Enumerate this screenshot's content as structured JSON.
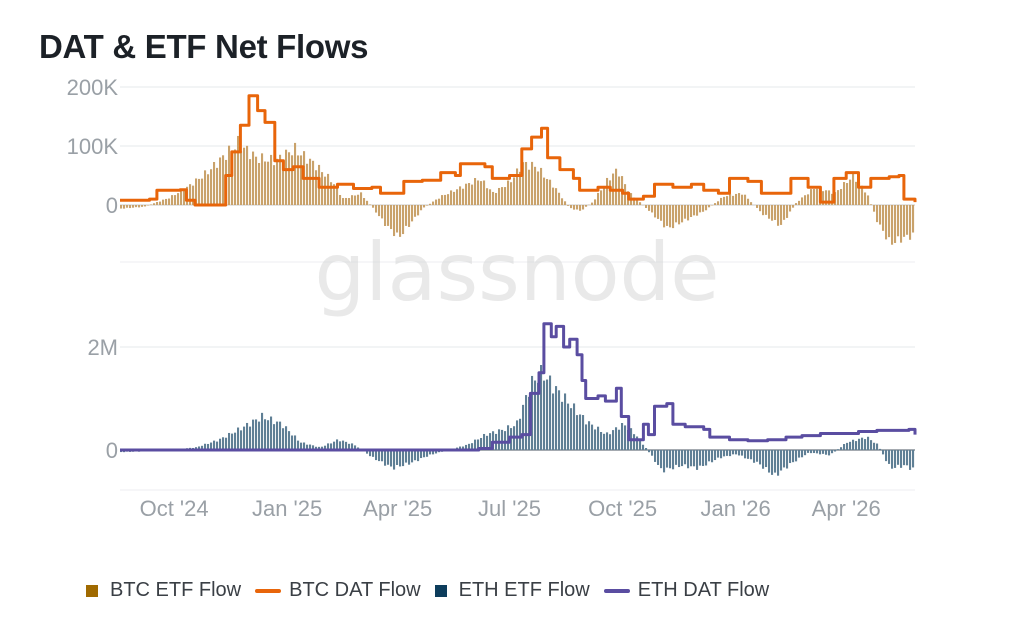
{
  "title": "DAT & ETF Net Flows",
  "watermark": "glassnode",
  "colors": {
    "btc_etf": "#a06a00",
    "btc_etf_fill": "#c9a26b",
    "btc_dat": "#e8650a",
    "eth_etf": "#0d3d5c",
    "eth_etf_fill": "#5f7f95",
    "eth_dat": "#5a4da1"
  },
  "legend": [
    {
      "label": "BTC ETF Flow",
      "kind": "box",
      "color": "#a06a00"
    },
    {
      "label": "BTC DAT Flow",
      "kind": "line",
      "color": "#e8650a"
    },
    {
      "label": "ETH ETF Flow",
      "kind": "box",
      "color": "#0d3d5c"
    },
    {
      "label": "ETH DAT Flow",
      "kind": "line",
      "color": "#5a4da1"
    }
  ],
  "chart_data": [
    {
      "type": "bar",
      "panel": "top",
      "ylim": [
        -100000,
        200000
      ],
      "y_ticks": [
        {
          "value": 200000,
          "label": "200K"
        },
        {
          "value": 100000,
          "label": "100K"
        },
        {
          "value": 0,
          "label": "0"
        }
      ],
      "x_ticks": [
        "Oct '24",
        "Jan '25",
        "Apr '25",
        "Jul '25",
        "Oct '25",
        "Jan '26",
        "Apr '26"
      ],
      "x_range": [
        "2024-09-01",
        "2026-06-10"
      ],
      "grid": true,
      "series": [
        {
          "name": "BTC ETF Flow",
          "kind": "bar",
          "points": [
            [
              "2024-09-01",
              -6000
            ],
            [
              "2024-09-20",
              -3000
            ],
            [
              "2024-10-10",
              12000
            ],
            [
              "2024-10-25",
              30000
            ],
            [
              "2024-11-10",
              55000
            ],
            [
              "2024-11-25",
              85000
            ],
            [
              "2024-12-05",
              105000
            ],
            [
              "2024-12-20",
              80000
            ],
            [
              "2025-01-05",
              75000
            ],
            [
              "2025-01-20",
              95000
            ],
            [
              "2025-02-05",
              70000
            ],
            [
              "2025-02-20",
              40000
            ],
            [
              "2025-03-01",
              10000
            ],
            [
              "2025-03-15",
              20000
            ],
            [
              "2025-03-25",
              -5000
            ],
            [
              "2025-04-05",
              -35000
            ],
            [
              "2025-04-15",
              -55000
            ],
            [
              "2025-04-25",
              -30000
            ],
            [
              "2025-05-05",
              -5000
            ],
            [
              "2025-05-20",
              15000
            ],
            [
              "2025-06-05",
              30000
            ],
            [
              "2025-06-20",
              45000
            ],
            [
              "2025-07-01",
              20000
            ],
            [
              "2025-07-15",
              40000
            ],
            [
              "2025-07-25",
              70000
            ],
            [
              "2025-08-05",
              65000
            ],
            [
              "2025-08-20",
              30000
            ],
            [
              "2025-09-01",
              -5000
            ],
            [
              "2025-09-10",
              -10000
            ],
            [
              "2025-09-20",
              5000
            ],
            [
              "2025-10-01",
              40000
            ],
            [
              "2025-10-10",
              60000
            ],
            [
              "2025-10-20",
              20000
            ],
            [
              "2025-11-05",
              -10000
            ],
            [
              "2025-11-20",
              -40000
            ],
            [
              "2025-12-05",
              -25000
            ],
            [
              "2025-12-20",
              -10000
            ],
            [
              "2026-01-05",
              15000
            ],
            [
              "2026-01-20",
              20000
            ],
            [
              "2026-02-05",
              -15000
            ],
            [
              "2026-02-20",
              -35000
            ],
            [
              "2026-03-05",
              5000
            ],
            [
              "2026-03-20",
              30000
            ],
            [
              "2026-04-05",
              20000
            ],
            [
              "2026-04-20",
              50000
            ],
            [
              "2026-05-01",
              20000
            ],
            [
              "2026-05-10",
              -30000
            ],
            [
              "2026-05-20",
              -65000
            ],
            [
              "2026-06-01",
              -55000
            ],
            [
              "2026-06-10",
              -50000
            ]
          ]
        },
        {
          "name": "BTC DAT Flow",
          "kind": "line",
          "points": [
            [
              "2024-09-01",
              8000
            ],
            [
              "2024-09-25",
              10000
            ],
            [
              "2024-10-01",
              25000
            ],
            [
              "2024-10-20",
              26000
            ],
            [
              "2024-10-25",
              8000
            ],
            [
              "2024-11-01",
              0
            ],
            [
              "2024-11-25",
              0
            ],
            [
              "2024-11-26",
              50000
            ],
            [
              "2024-12-01",
              90000
            ],
            [
              "2024-12-08",
              135000
            ],
            [
              "2024-12-15",
              185000
            ],
            [
              "2024-12-22",
              160000
            ],
            [
              "2024-12-28",
              140000
            ],
            [
              "2025-01-05",
              75000
            ],
            [
              "2025-01-12",
              60000
            ],
            [
              "2025-01-20",
              65000
            ],
            [
              "2025-01-28",
              45000
            ],
            [
              "2025-02-10",
              30000
            ],
            [
              "2025-02-25",
              35000
            ],
            [
              "2025-03-10",
              28000
            ],
            [
              "2025-03-25",
              30000
            ],
            [
              "2025-04-01",
              20000
            ],
            [
              "2025-04-15",
              20000
            ],
            [
              "2025-04-20",
              40000
            ],
            [
              "2025-05-05",
              42000
            ],
            [
              "2025-05-20",
              55000
            ],
            [
              "2025-06-01",
              50000
            ],
            [
              "2025-06-05",
              70000
            ],
            [
              "2025-06-25",
              65000
            ],
            [
              "2025-07-01",
              45000
            ],
            [
              "2025-07-15",
              50000
            ],
            [
              "2025-07-25",
              95000
            ],
            [
              "2025-08-02",
              115000
            ],
            [
              "2025-08-10",
              130000
            ],
            [
              "2025-08-15",
              80000
            ],
            [
              "2025-08-25",
              60000
            ],
            [
              "2025-09-05",
              45000
            ],
            [
              "2025-09-10",
              25000
            ],
            [
              "2025-09-25",
              30000
            ],
            [
              "2025-10-05",
              25000
            ],
            [
              "2025-10-15",
              20000
            ],
            [
              "2025-10-20",
              10000
            ],
            [
              "2025-11-01",
              15000
            ],
            [
              "2025-11-10",
              35000
            ],
            [
              "2025-11-25",
              30000
            ],
            [
              "2025-12-10",
              35000
            ],
            [
              "2025-12-20",
              25000
            ],
            [
              "2026-01-01",
              20000
            ],
            [
              "2026-01-10",
              45000
            ],
            [
              "2026-01-25",
              40000
            ],
            [
              "2026-02-05",
              20000
            ],
            [
              "2026-02-20",
              20000
            ],
            [
              "2026-03-01",
              45000
            ],
            [
              "2026-03-15",
              30000
            ],
            [
              "2026-03-25",
              5000
            ],
            [
              "2026-04-05",
              45000
            ],
            [
              "2026-04-15",
              55000
            ],
            [
              "2026-04-25",
              30000
            ],
            [
              "2026-05-05",
              45000
            ],
            [
              "2026-05-20",
              48000
            ],
            [
              "2026-05-28",
              50000
            ],
            [
              "2026-06-01",
              10000
            ],
            [
              "2026-06-10",
              5000
            ]
          ]
        }
      ]
    },
    {
      "type": "bar",
      "panel": "bottom",
      "ylim": [
        -600000,
        2500000
      ],
      "y_ticks": [
        {
          "value": 2000000,
          "label": "2M"
        },
        {
          "value": 0,
          "label": "0"
        }
      ],
      "x_ticks": [
        "Oct '24",
        "Jan '25",
        "Apr '25",
        "Jul '25",
        "Oct '25",
        "Jan '26",
        "Apr '26"
      ],
      "x_range": [
        "2024-09-01",
        "2026-06-10"
      ],
      "grid": true,
      "series": [
        {
          "name": "ETH ETF Flow",
          "kind": "bar",
          "points": [
            [
              "2024-09-01",
              -40000
            ],
            [
              "2024-10-01",
              -20000
            ],
            [
              "2024-11-01",
              50000
            ],
            [
              "2024-11-20",
              200000
            ],
            [
              "2024-12-10",
              450000
            ],
            [
              "2024-12-25",
              650000
            ],
            [
              "2025-01-10",
              500000
            ],
            [
              "2025-01-25",
              150000
            ],
            [
              "2025-02-10",
              50000
            ],
            [
              "2025-02-25",
              200000
            ],
            [
              "2025-03-10",
              100000
            ],
            [
              "2025-03-25",
              -150000
            ],
            [
              "2025-04-10",
              -350000
            ],
            [
              "2025-04-25",
              -250000
            ],
            [
              "2025-05-10",
              -100000
            ],
            [
              "2025-05-25",
              0
            ],
            [
              "2025-06-10",
              100000
            ],
            [
              "2025-06-25",
              300000
            ],
            [
              "2025-07-10",
              400000
            ],
            [
              "2025-07-20",
              500000
            ],
            [
              "2025-08-01",
              1300000
            ],
            [
              "2025-08-10",
              1500000
            ],
            [
              "2025-08-20",
              1200000
            ],
            [
              "2025-09-01",
              900000
            ],
            [
              "2025-09-15",
              550000
            ],
            [
              "2025-10-01",
              300000
            ],
            [
              "2025-10-15",
              500000
            ],
            [
              "2025-10-25",
              300000
            ],
            [
              "2025-11-05",
              -50000
            ],
            [
              "2025-11-15",
              -400000
            ],
            [
              "2025-12-01",
              -300000
            ],
            [
              "2025-12-15",
              -350000
            ],
            [
              "2026-01-01",
              -150000
            ],
            [
              "2026-01-15",
              -80000
            ],
            [
              "2026-02-01",
              -250000
            ],
            [
              "2026-02-15",
              -500000
            ],
            [
              "2026-03-01",
              -250000
            ],
            [
              "2026-03-15",
              -50000
            ],
            [
              "2026-04-01",
              -100000
            ],
            [
              "2026-04-15",
              150000
            ],
            [
              "2026-05-01",
              250000
            ],
            [
              "2026-05-10",
              100000
            ],
            [
              "2026-05-20",
              -350000
            ],
            [
              "2026-06-01",
              -300000
            ],
            [
              "2026-06-10",
              -400000
            ]
          ]
        },
        {
          "name": "ETH DAT Flow",
          "kind": "line",
          "points": [
            [
              "2024-09-01",
              0
            ],
            [
              "2025-06-01",
              0
            ],
            [
              "2025-06-20",
              30000
            ],
            [
              "2025-07-01",
              150000
            ],
            [
              "2025-07-15",
              250000
            ],
            [
              "2025-07-25",
              300000
            ],
            [
              "2025-08-01",
              1100000
            ],
            [
              "2025-08-08",
              1500000
            ],
            [
              "2025-08-12",
              2450000
            ],
            [
              "2025-08-18",
              2200000
            ],
            [
              "2025-08-22",
              2400000
            ],
            [
              "2025-08-28",
              2000000
            ],
            [
              "2025-09-02",
              2150000
            ],
            [
              "2025-09-08",
              1850000
            ],
            [
              "2025-09-12",
              1350000
            ],
            [
              "2025-09-15",
              1000000
            ],
            [
              "2025-09-25",
              1050000
            ],
            [
              "2025-10-01",
              950000
            ],
            [
              "2025-10-10",
              1200000
            ],
            [
              "2025-10-14",
              650000
            ],
            [
              "2025-10-20",
              200000
            ],
            [
              "2025-11-01",
              500000
            ],
            [
              "2025-11-05",
              300000
            ],
            [
              "2025-11-10",
              850000
            ],
            [
              "2025-11-20",
              900000
            ],
            [
              "2025-11-25",
              500000
            ],
            [
              "2025-12-05",
              450000
            ],
            [
              "2025-12-20",
              400000
            ],
            [
              "2025-12-25",
              250000
            ],
            [
              "2026-01-10",
              200000
            ],
            [
              "2026-01-25",
              180000
            ],
            [
              "2026-02-10",
              200000
            ],
            [
              "2026-02-25",
              250000
            ],
            [
              "2026-03-10",
              280000
            ],
            [
              "2026-03-25",
              320000
            ],
            [
              "2026-04-10",
              320000
            ],
            [
              "2026-04-25",
              360000
            ],
            [
              "2026-05-10",
              380000
            ],
            [
              "2026-05-25",
              380000
            ],
            [
              "2026-06-05",
              400000
            ],
            [
              "2026-06-10",
              300000
            ]
          ]
        }
      ]
    }
  ]
}
